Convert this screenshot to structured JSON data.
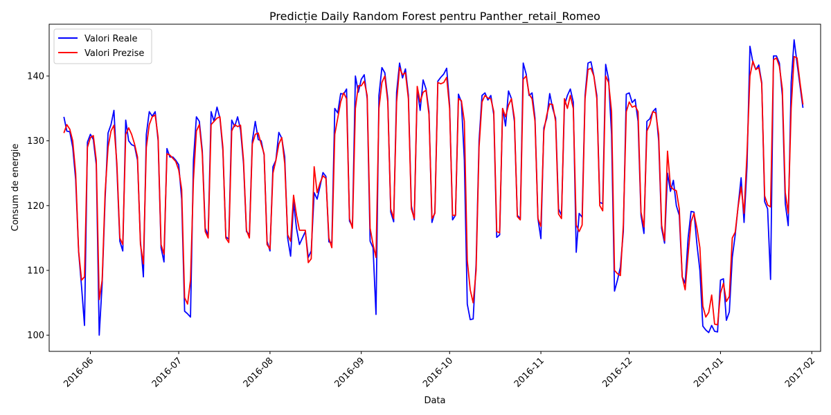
{
  "chart_data": {
    "type": "line",
    "title": "Predicție Daily Random Forest pentru Panther_retail_Romeo",
    "xlabel": "Data",
    "ylabel": "Consum de energie",
    "xlim": [
      "2016-05-18",
      "2017-02-04"
    ],
    "ylim": [
      97.5,
      148.0
    ],
    "x_ticks": [
      "2016-06-01",
      "2016-07-01",
      "2016-08-01",
      "2016-09-01",
      "2016-10-01",
      "2016-11-01",
      "2016-12-01",
      "2017-01-01",
      "2017-02-01"
    ],
    "x_tick_labels": [
      "2016-06",
      "2016-07",
      "2016-08",
      "2016-09",
      "2016-10",
      "2016-11",
      "2016-12",
      "2017-01",
      "2017-02"
    ],
    "y_ticks": [
      100,
      110,
      120,
      130,
      140
    ],
    "y_tick_labels": [
      "100",
      "110",
      "120",
      "130",
      "140"
    ],
    "grid": false,
    "legend_position": "top-left",
    "x_start": "2016-05-23",
    "series": [
      {
        "name": "Valori Reale",
        "color": "#0000ff",
        "values": [
          133.7,
          131.5,
          131.4,
          129.0,
          124.0,
          112.9,
          107.5,
          101.5,
          129.8,
          131.0,
          130.2,
          126.3,
          100.0,
          108.0,
          121.0,
          131.2,
          132.5,
          134.7,
          125.8,
          114.5,
          113.0,
          133.2,
          130.0,
          129.4,
          129.2,
          127.0,
          114.5,
          109.0,
          131.0,
          134.5,
          133.8,
          134.5,
          130.0,
          113.5,
          111.3,
          128.8,
          127.5,
          127.5,
          127.0,
          126.3,
          121.0,
          103.7,
          103.3,
          102.8,
          127.0,
          133.7,
          133.0,
          128.5,
          116.5,
          115.4,
          134.5,
          133.0,
          135.2,
          133.5,
          128.5,
          115.2,
          114.8,
          133.2,
          132.2,
          133.7,
          131.7,
          126.5,
          116.0,
          115.5,
          130.0,
          133.0,
          130.2,
          130.0,
          127.8,
          114.5,
          113.0,
          126.0,
          127.0,
          131.3,
          130.4,
          127.5,
          115.0,
          112.2,
          120.5,
          116.5,
          114.0,
          115.0,
          116.0,
          112.0,
          113.0,
          122.0,
          121.0,
          123.0,
          125.1,
          124.5,
          114.4,
          114.3,
          135.0,
          134.3,
          137.3,
          137.2,
          138.0,
          117.6,
          116.8,
          140.0,
          137.5,
          139.5,
          140.2,
          136.5,
          114.5,
          113.5,
          103.2,
          137.0,
          141.3,
          140.5,
          136.5,
          119.0,
          117.5,
          137.5,
          142.0,
          139.7,
          141.1,
          137.0,
          120.0,
          117.8,
          138.0,
          134.7,
          139.4,
          138.0,
          134.5,
          117.4,
          119.0,
          139.2,
          139.8,
          140.3,
          141.2,
          135.5,
          117.8,
          118.5,
          137.2,
          136.0,
          127.0,
          104.8,
          102.4,
          102.5,
          111.0,
          130.0,
          137.0,
          137.4,
          136.3,
          137.0,
          134.0,
          115.1,
          115.5,
          135.0,
          132.3,
          137.7,
          136.5,
          133.0,
          118.5,
          118.0,
          142.0,
          140.3,
          137.0,
          137.4,
          133.5,
          118.0,
          114.9,
          132.0,
          133.5,
          137.3,
          135.0,
          133.5,
          119.5,
          118.5,
          135.5,
          137.0,
          138.0,
          136.0,
          112.8,
          118.8,
          118.2,
          137.0,
          142.0,
          142.2,
          140.0,
          137.0,
          120.5,
          120.3,
          141.8,
          139.5,
          131.0,
          106.8,
          108.5,
          110.5,
          116.0,
          137.2,
          137.4,
          135.9,
          136.4,
          133.0,
          118.5,
          115.7,
          133.0,
          133.4,
          134.5,
          135.0,
          130.0,
          116.5,
          114.2,
          125.0,
          122.2,
          123.9,
          120.0,
          118.5,
          109.0,
          108.0,
          115.0,
          119.1,
          119.0,
          114.0,
          110.0,
          101.4,
          100.8,
          100.4,
          101.5,
          100.6,
          100.5,
          108.5,
          108.7,
          102.3,
          103.6,
          112.0,
          115.5,
          120.0,
          124.3,
          117.4,
          126.0,
          144.6,
          142.1,
          141.0,
          141.7,
          139.0,
          120.6,
          119.5,
          108.6,
          143.1,
          143.1,
          142.0,
          137.0,
          120.3,
          116.9,
          139.0,
          145.6,
          142.0,
          138.5,
          135.1
        ],
        "values_note": ""
      },
      {
        "name": "Valori Prezise",
        "color": "#ff0000",
        "values": [
          131.2,
          132.5,
          131.8,
          130.0,
          125.0,
          113.0,
          108.5,
          109.0,
          129.0,
          130.5,
          130.8,
          127.0,
          105.5,
          108.5,
          122.0,
          129.0,
          131.5,
          132.4,
          126.5,
          115.0,
          114.0,
          131.0,
          132.0,
          131.0,
          129.5,
          127.5,
          114.0,
          111.0,
          129.0,
          132.5,
          133.7,
          134.0,
          130.5,
          114.0,
          112.5,
          128.0,
          127.8,
          127.3,
          126.8,
          125.5,
          122.5,
          105.8,
          104.8,
          108.5,
          124.0,
          131.5,
          132.5,
          128.0,
          116.0,
          115.0,
          132.5,
          133.0,
          133.5,
          133.7,
          129.0,
          115.0,
          114.3,
          131.5,
          132.5,
          132.2,
          132.4,
          127.0,
          116.2,
          115.0,
          129.5,
          131.0,
          131.2,
          129.5,
          128.0,
          114.0,
          113.3,
          125.0,
          127.0,
          129.5,
          130.5,
          126.5,
          115.5,
          114.5,
          121.6,
          118.5,
          116.2,
          116.2,
          116.2,
          111.2,
          111.8,
          126.0,
          122.0,
          123.5,
          124.6,
          124.2,
          115.0,
          113.5,
          131.0,
          133.5,
          136.0,
          137.4,
          136.5,
          118.0,
          116.5,
          135.0,
          138.5,
          138.5,
          139.2,
          137.0,
          116.5,
          114.0,
          112.0,
          135.0,
          139.0,
          140.0,
          136.0,
          119.5,
          118.0,
          136.0,
          141.3,
          140.2,
          140.5,
          136.5,
          119.5,
          118.0,
          138.4,
          136.0,
          137.5,
          137.8,
          134.0,
          118.0,
          118.8,
          139.0,
          138.8,
          139.0,
          139.8,
          135.0,
          118.5,
          118.5,
          136.5,
          136.2,
          133.0,
          111.5,
          107.0,
          105.0,
          110.0,
          129.0,
          136.0,
          137.0,
          136.6,
          136.5,
          134.5,
          116.0,
          115.8,
          135.0,
          133.7,
          135.5,
          136.5,
          133.5,
          118.3,
          117.8,
          139.5,
          140.0,
          137.2,
          136.5,
          133.0,
          118.0,
          116.8,
          131.5,
          134.0,
          135.7,
          135.6,
          133.0,
          118.7,
          118.0,
          136.5,
          135.0,
          137.0,
          135.0,
          117.0,
          116.0,
          117.0,
          136.5,
          141.0,
          141.2,
          140.0,
          136.5,
          120.0,
          119.2,
          140.0,
          139.0,
          134.5,
          110.0,
          109.5,
          109.2,
          117.0,
          134.5,
          136.0,
          135.2,
          135.4,
          134.5,
          119.0,
          116.7,
          131.5,
          132.5,
          134.5,
          134.3,
          131.0,
          117.0,
          114.6,
          128.4,
          123.0,
          122.5,
          122.3,
          119.5,
          109.0,
          107.0,
          112.5,
          117.5,
          118.8,
          116.5,
          113.5,
          104.5,
          102.8,
          103.5,
          106.2,
          101.7,
          101.6,
          106.5,
          108.0,
          105.2,
          106.0,
          115.0,
          115.9,
          119.9,
          122.9,
          118.8,
          128.0,
          140.0,
          142.3,
          141.0,
          141.3,
          138.8,
          121.5,
          120.1,
          119.8,
          142.5,
          142.8,
          141.5,
          138.0,
          122.0,
          118.8,
          135.0,
          143.0,
          142.8,
          139.0,
          135.6
        ],
        "values_note": ""
      }
    ]
  }
}
